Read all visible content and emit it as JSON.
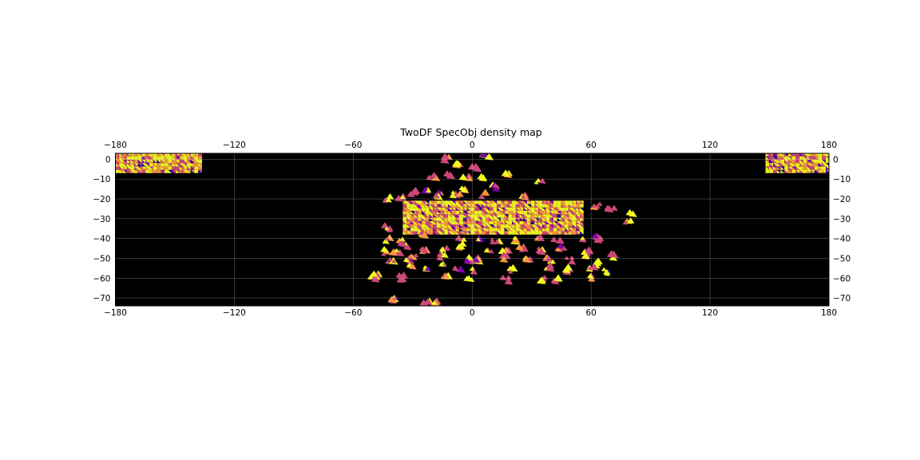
{
  "chart_data": {
    "type": "heatmap",
    "title": "TwoDF SpecObj density map",
    "xlabel": "",
    "ylabel": "",
    "xlim": [
      -180,
      180
    ],
    "ylim": [
      -74,
      3
    ],
    "grid": true,
    "x_ticks": [
      -180,
      -120,
      -60,
      0,
      60,
      120,
      180
    ],
    "x_tick_labels": [
      "−180",
      "−120",
      "−60",
      "0",
      "60",
      "120",
      "180"
    ],
    "y_ticks": [
      0,
      -10,
      -20,
      -30,
      -40,
      -50,
      -60,
      -70
    ],
    "y_tick_labels": [
      "0",
      "−10",
      "−20",
      "−30",
      "−40",
      "−50",
      "−60",
      "−70"
    ],
    "colormap": [
      "#0d0887",
      "#7e03a8",
      "#cc4778",
      "#f89540",
      "#f0f921"
    ],
    "background_color": "#000000",
    "regions": [
      {
        "name": "",
        "x_range": [
          -180,
          -137
        ],
        "y_range": [
          -7,
          2
        ],
        "density": 0.8
      },
      {
        "name": "",
        "x_range": [
          148,
          180
        ],
        "y_range": [
          -7,
          2
        ],
        "density": 0.8
      },
      {
        "name": "",
        "x_range": [
          -35,
          55
        ],
        "y_range": [
          -38,
          -22
        ],
        "density": 0.85
      }
    ],
    "fields": [
      [
        -13,
        0
      ],
      [
        7,
        1
      ],
      [
        1,
        -5
      ],
      [
        -7,
        -3
      ],
      [
        -12,
        -8
      ],
      [
        -3,
        -9
      ],
      [
        4,
        -9
      ],
      [
        17,
        -8
      ],
      [
        34,
        -11
      ],
      [
        -20,
        -9
      ],
      [
        -30,
        -17
      ],
      [
        -23,
        -16
      ],
      [
        -17,
        -18
      ],
      [
        -8,
        -18
      ],
      [
        6,
        -18
      ],
      [
        -4,
        -15
      ],
      [
        11,
        -14
      ],
      [
        25,
        -19
      ],
      [
        -36,
        -19
      ],
      [
        -43,
        -20
      ],
      [
        63,
        -24
      ],
      [
        70,
        -26
      ],
      [
        81,
        -28
      ],
      [
        79,
        -32
      ],
      [
        -43,
        -35
      ],
      [
        -43,
        -41
      ],
      [
        -35,
        -41
      ],
      [
        -25,
        -38
      ],
      [
        -5,
        -41
      ],
      [
        4,
        -40
      ],
      [
        12,
        -41
      ],
      [
        22,
        -41
      ],
      [
        34,
        -40
      ],
      [
        43,
        -41
      ],
      [
        55,
        -40
      ],
      [
        63,
        -40
      ],
      [
        -34,
        -44
      ],
      [
        -45,
        -47
      ],
      [
        -38,
        -47
      ],
      [
        -24,
        -46
      ],
      [
        -14,
        -45
      ],
      [
        -5,
        -44
      ],
      [
        9,
        -46
      ],
      [
        17,
        -47
      ],
      [
        25,
        -45
      ],
      [
        35,
        -46
      ],
      [
        45,
        -45
      ],
      [
        58,
        -47
      ],
      [
        71,
        -49
      ],
      [
        -30,
        -49
      ],
      [
        -41,
        -51
      ],
      [
        -32,
        -52
      ],
      [
        -15,
        -49
      ],
      [
        3,
        -51
      ],
      [
        16,
        -50
      ],
      [
        28,
        -50
      ],
      [
        39,
        -51
      ],
      [
        49,
        -51
      ],
      [
        62,
        -52
      ],
      [
        57,
        -50
      ],
      [
        -30,
        -55
      ],
      [
        -22,
        -55
      ],
      [
        -16,
        -54
      ],
      [
        -7,
        -55
      ],
      [
        0,
        -56
      ],
      [
        19,
        -56
      ],
      [
        38,
        -55
      ],
      [
        48,
        -56
      ],
      [
        61,
        -55
      ],
      [
        67,
        -57
      ],
      [
        -1,
        -51
      ],
      [
        -49,
        -60
      ],
      [
        -36,
        -60
      ],
      [
        -13,
        -60
      ],
      [
        -2,
        -61
      ],
      [
        17,
        -61
      ],
      [
        35,
        -61
      ],
      [
        42,
        -61
      ],
      [
        60,
        -60
      ],
      [
        -48,
        -59
      ],
      [
        -39,
        -71
      ],
      [
        -19,
        -73
      ],
      [
        -23,
        -73
      ]
    ]
  }
}
